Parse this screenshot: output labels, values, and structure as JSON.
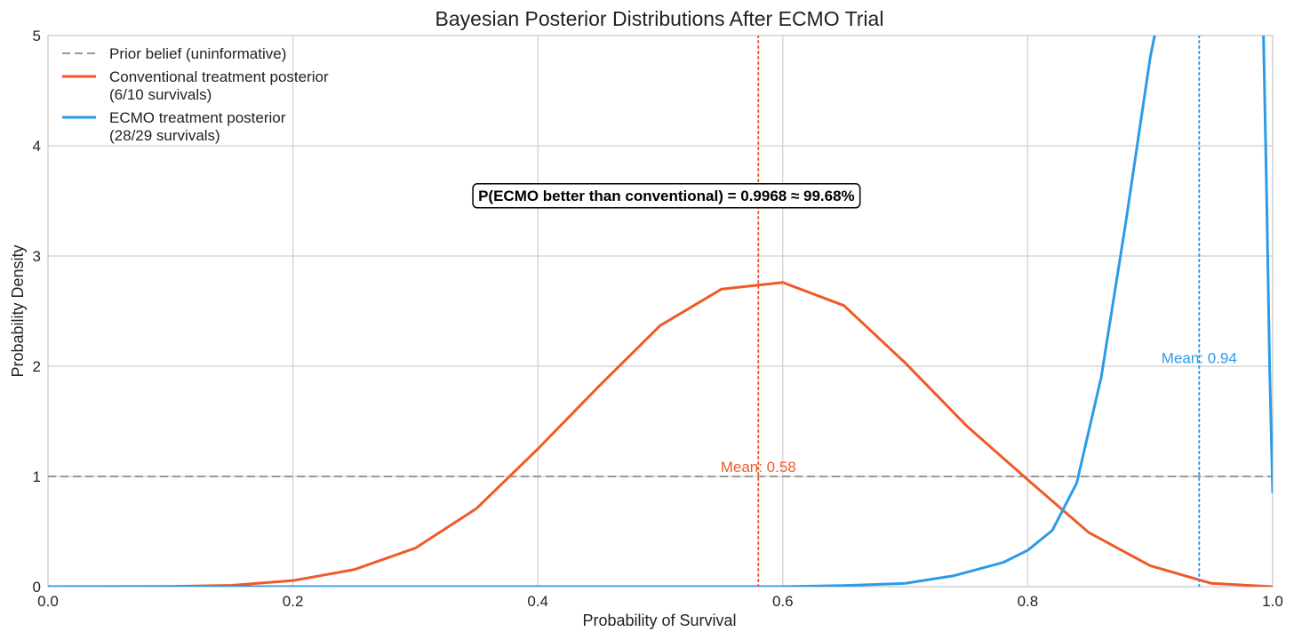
{
  "chart_data": {
    "type": "line",
    "title": "Bayesian Posterior Distributions After ECMO Trial",
    "xlabel": "Probability of Survival",
    "ylabel": "Probability Density",
    "xlim": [
      0,
      1
    ],
    "ylim": [
      0,
      5
    ],
    "x_ticks": [
      "0.0",
      "0.2",
      "0.4",
      "0.6",
      "0.8",
      "1.0"
    ],
    "y_ticks": [
      "0",
      "1",
      "2",
      "3",
      "4",
      "5"
    ],
    "grid": true,
    "legend_position": "top-left",
    "series": [
      {
        "name": "Prior belief (uninformative)",
        "style": "dashed",
        "color": "#999999",
        "x": [
          0,
          1
        ],
        "y": [
          1,
          1
        ]
      },
      {
        "name": "Conventional treatment posterior\n(6/10 survivals)",
        "style": "solid",
        "color": "#f05a28",
        "x": [
          0.0,
          0.1,
          0.15,
          0.2,
          0.25,
          0.3,
          0.35,
          0.4,
          0.45,
          0.5,
          0.55,
          0.6,
          0.65,
          0.7,
          0.75,
          0.8,
          0.85,
          0.9,
          0.95,
          1.0
        ],
        "y": [
          0.0,
          0.002,
          0.012,
          0.055,
          0.155,
          0.35,
          0.71,
          1.25,
          1.82,
          2.37,
          2.7,
          2.76,
          2.55,
          2.03,
          1.46,
          0.97,
          0.49,
          0.19,
          0.03,
          0.0
        ]
      },
      {
        "name": "ECMO treatment posterior\n(28/29 survivals)",
        "style": "solid",
        "color": "#2b9be8",
        "x": [
          0.0,
          0.6,
          0.65,
          0.7,
          0.74,
          0.78,
          0.8,
          0.82,
          0.84,
          0.86,
          0.88,
          0.9,
          0.9125,
          0.99,
          0.9925,
          0.995,
          0.9975,
          1.0
        ],
        "y": [
          0.0,
          0.0,
          0.01,
          0.03,
          0.1,
          0.22,
          0.33,
          0.51,
          0.94,
          1.9,
          3.3,
          4.8,
          5.5,
          5.5,
          5.0,
          3.6,
          2.0,
          0.85
        ]
      }
    ],
    "vlines": [
      {
        "x": 0.58,
        "color": "#f05a28",
        "style": "dotted",
        "label": "Mean: 0.58",
        "label_y": 1.04
      },
      {
        "x": 0.94,
        "color": "#2b9be8",
        "style": "dotted",
        "label": "Mean: 0.94",
        "label_y": 2.03
      }
    ],
    "annotation": {
      "text": "P(ECMO better than conventional) = 0.9968 ≈ 99.68%",
      "x": 0.505,
      "y": 3.55
    }
  }
}
